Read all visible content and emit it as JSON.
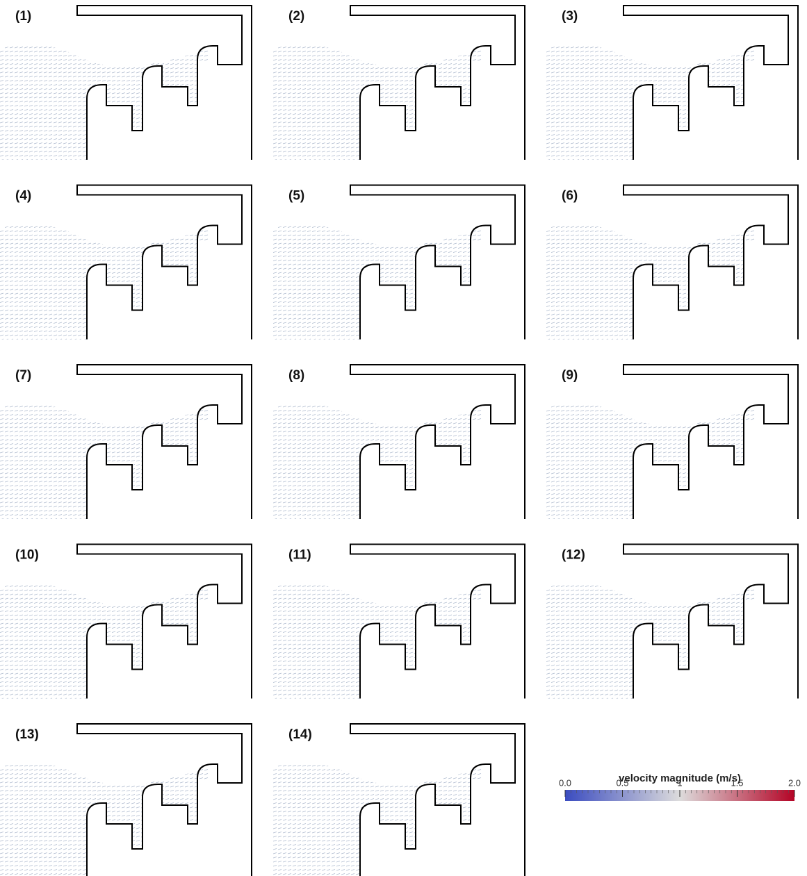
{
  "panels": [
    {
      "label": "(1)"
    },
    {
      "label": "(2)"
    },
    {
      "label": "(3)"
    },
    {
      "label": "(4)"
    },
    {
      "label": "(5)"
    },
    {
      "label": "(6)"
    },
    {
      "label": "(7)"
    },
    {
      "label": "(8)"
    },
    {
      "label": "(9)"
    },
    {
      "label": "(10)"
    },
    {
      "label": "(11)"
    },
    {
      "label": "(12)"
    },
    {
      "label": "(13)"
    },
    {
      "label": "(14)"
    }
  ],
  "colorbar": {
    "title": "velocity magnitude (m/s)",
    "lim": [
      0,
      2
    ],
    "ticks": [
      {
        "value": 0,
        "label": "0.0"
      },
      0.5,
      1,
      1.5,
      {
        "value": 2,
        "label": "2.0"
      }
    ],
    "colormap": [
      "#3b4cc0",
      "#dddcdc",
      "#b40426"
    ]
  }
}
